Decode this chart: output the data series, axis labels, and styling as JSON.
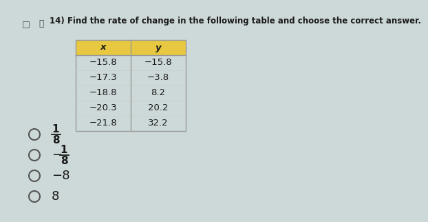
{
  "title": "14) Find the rate of change in the following table and choose the correct answer.",
  "table_headers": [
    "x",
    "y"
  ],
  "table_data": [
    [
      "−15.8",
      "−15.8"
    ],
    [
      "−17.3",
      "−3.8"
    ],
    [
      "−18.8",
      "8.2"
    ],
    [
      "−20.3",
      "20.2"
    ],
    [
      "−21.8",
      "32.2"
    ]
  ],
  "header_bg": "#e8c840",
  "choices": [
    {
      "numerator": "1",
      "denominator": "8",
      "negative": false,
      "fraction": true
    },
    {
      "numerator": "1",
      "denominator": "8",
      "negative": true,
      "fraction": true
    },
    {
      "value": "−8",
      "fraction": false
    },
    {
      "value": "8",
      "fraction": false
    }
  ],
  "bg_color": "#cdd8d8",
  "text_color": "#1a1a1a",
  "title_fontsize": 8.5,
  "table_fontsize": 9.5,
  "choice_fontsize": 11
}
